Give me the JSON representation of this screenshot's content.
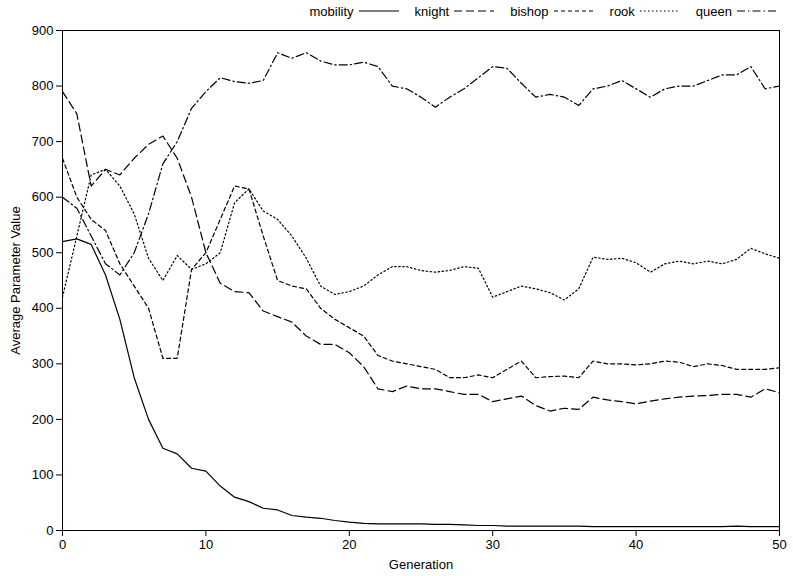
{
  "chart_data": {
    "type": "line",
    "x_label": "Generation",
    "y_label": "Average Parameter Value",
    "x": [
      0,
      1,
      2,
      3,
      4,
      5,
      6,
      7,
      8,
      9,
      10,
      11,
      12,
      13,
      14,
      15,
      16,
      17,
      18,
      19,
      20,
      21,
      22,
      23,
      24,
      25,
      26,
      27,
      28,
      29,
      30,
      31,
      32,
      33,
      34,
      35,
      36,
      37,
      38,
      39,
      40,
      41,
      42,
      43,
      44,
      45,
      46,
      47,
      48,
      49,
      50
    ],
    "xlim": [
      0,
      50
    ],
    "xticks": [
      0,
      10,
      20,
      30,
      40,
      50
    ],
    "ylim": [
      0,
      900
    ],
    "yticks": [
      0,
      100,
      200,
      300,
      400,
      500,
      600,
      700,
      800,
      900
    ],
    "grid": false,
    "legend": "top-right",
    "series": [
      {
        "name": "mobility",
        "color": "#000000",
        "line_style": "solid",
        "values": [
          520,
          525,
          515,
          460,
          380,
          275,
          200,
          148,
          138,
          112,
          107,
          80,
          60,
          52,
          40,
          37,
          27,
          24,
          22,
          18,
          15,
          13,
          12,
          12,
          12,
          12,
          11,
          11,
          10,
          9,
          9,
          8,
          8,
          8,
          8,
          8,
          8,
          7,
          7,
          7,
          7,
          7,
          7,
          7,
          7,
          7,
          7,
          8,
          7,
          7,
          7
        ]
      },
      {
        "name": "knight",
        "color": "#000000",
        "line_style": "dashed",
        "values": [
          790,
          750,
          620,
          650,
          640,
          670,
          695,
          710,
          670,
          600,
          500,
          445,
          430,
          428,
          395,
          385,
          375,
          350,
          335,
          335,
          320,
          295,
          255,
          250,
          260,
          255,
          255,
          250,
          245,
          245,
          232,
          237,
          242,
          225,
          215,
          220,
          218,
          240,
          235,
          232,
          228,
          233,
          237,
          240,
          242,
          243,
          245,
          245,
          240,
          255,
          248
        ]
      },
      {
        "name": "bishop",
        "color": "#000000",
        "line_style": "short-dashed",
        "values": [
          670,
          600,
          560,
          540,
          480,
          440,
          400,
          310,
          310,
          470,
          500,
          560,
          620,
          615,
          530,
          450,
          440,
          435,
          400,
          380,
          365,
          350,
          315,
          305,
          300,
          295,
          290,
          275,
          275,
          280,
          275,
          290,
          305,
          275,
          277,
          278,
          275,
          305,
          300,
          300,
          298,
          300,
          305,
          303,
          295,
          300,
          297,
          290,
          290,
          290,
          293
        ]
      },
      {
        "name": "rook",
        "color": "#000000",
        "line_style": "dotted",
        "values": [
          420,
          530,
          640,
          650,
          620,
          570,
          490,
          450,
          495,
          470,
          480,
          500,
          590,
          615,
          575,
          560,
          530,
          490,
          440,
          425,
          430,
          440,
          460,
          475,
          475,
          468,
          465,
          468,
          475,
          472,
          420,
          430,
          440,
          435,
          428,
          415,
          435,
          492,
          488,
          490,
          482,
          465,
          480,
          485,
          480,
          485,
          480,
          488,
          508,
          498,
          490
        ]
      },
      {
        "name": "queen",
        "color": "#000000",
        "line_style": "dash-dot",
        "values": [
          600,
          580,
          530,
          480,
          460,
          500,
          570,
          660,
          700,
          760,
          790,
          815,
          808,
          805,
          810,
          860,
          850,
          860,
          845,
          838,
          838,
          843,
          835,
          800,
          795,
          780,
          762,
          780,
          795,
          815,
          835,
          832,
          805,
          780,
          785,
          780,
          765,
          795,
          800,
          810,
          795,
          780,
          795,
          800,
          800,
          810,
          820,
          820,
          835,
          795,
          800
        ]
      }
    ]
  }
}
